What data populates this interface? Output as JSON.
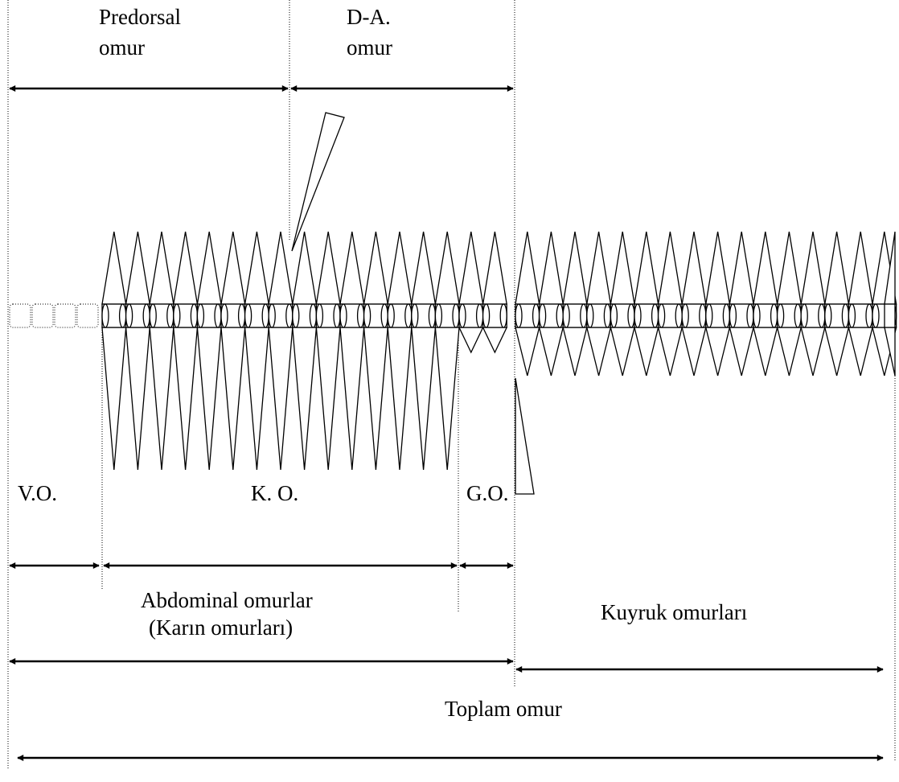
{
  "labels": {
    "predorsal": [
      "Predorsal",
      "omur"
    ],
    "da": [
      "D-A.",
      "omur"
    ],
    "vo": "V.O.",
    "ko": "K. O.",
    "go": "G.O.",
    "abdominal": [
      "Abdominal omurlar",
      "(Karın omurları)"
    ],
    "kuyruk": "Kuyruk omurları",
    "toplam": "Toplam omur"
  }
}
